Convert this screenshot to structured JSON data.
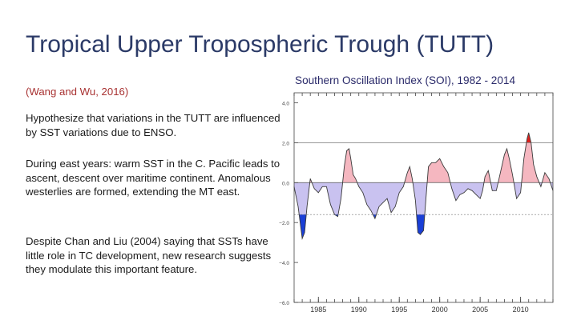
{
  "slide": {
    "title": "Tropical Upper Tropospheric Trough (TUTT)",
    "citation": "(Wang and Wu, 2016)",
    "paragraphs": [
      "Hypothesize that variations in the TUTT are influenced by SST variations due to ENSO.",
      "During east years: warm SST in the C. Pacific leads to ascent, descent over maritime continent. Anomalous westerlies are formed, extending the MT east.",
      "Despite Chan and Liu (2004) saying that SSTs have little role in TC development, new research suggests they modulate this important feature."
    ]
  },
  "colors": {
    "title": "#2b3a67",
    "citation": "#a83232",
    "positive_fill": "#f5b7c0",
    "strong_positive_fill": "#e0201c",
    "negative_fill": "#c9c2f0",
    "strong_negative_fill": "#1a3fd6",
    "curve": "#3a3a3a"
  },
  "chart_data": {
    "type": "area",
    "title": "Southern Oscillation Index (SOI), 1982 - 2014",
    "xlim": [
      1982,
      2014
    ],
    "ylim": [
      -6,
      4.5
    ],
    "x_ticks": [
      1985,
      1990,
      1995,
      2000,
      2005,
      2010
    ],
    "y_ticks": [
      4.0,
      2.0,
      0.0,
      -2.0,
      -4.0,
      -6.0
    ],
    "y_tick_labels": [
      "4.0",
      "2.0",
      "0.0",
      "−2.0",
      "−4.0",
      "−6.0"
    ],
    "reference_lines": [
      2.0,
      0.0,
      -1.6
    ],
    "series": [
      {
        "x": [
          1982.0,
          1982.5,
          1983.0,
          1983.3,
          1983.6,
          1984.0,
          1984.5,
          1985.0,
          1985.5,
          1986.0,
          1986.5,
          1987.0,
          1987.4,
          1987.8,
          1988.2,
          1988.5,
          1988.8,
          1989.0,
          1989.3,
          1989.6,
          1990.0,
          1990.5,
          1991.0,
          1991.5,
          1992.0,
          1992.5,
          1993.0,
          1993.5,
          1994.0,
          1994.5,
          1995.0,
          1995.5,
          1996.0,
          1996.3,
          1996.6,
          1997.0,
          1997.3,
          1997.6,
          1998.0,
          1998.3,
          1998.6,
          1999.0,
          1999.5,
          2000.0,
          2000.5,
          2001.0,
          2001.5,
          2002.0,
          2002.5,
          2003.0,
          2003.5,
          2004.0,
          2004.5,
          2005.0,
          2005.3,
          2005.6,
          2006.0,
          2006.5,
          2007.0,
          2007.5,
          2008.0,
          2008.3,
          2008.6,
          2009.0,
          2009.5,
          2010.0,
          2010.4,
          2010.8,
          2011.0,
          2011.3,
          2011.6,
          2012.0,
          2012.5,
          2013.0,
          2013.5,
          2014.0
        ],
        "y": [
          -0.2,
          -1.2,
          -2.8,
          -2.5,
          -1.2,
          0.2,
          -0.3,
          -0.5,
          -0.2,
          -0.2,
          -1.1,
          -1.6,
          -1.7,
          -0.8,
          0.8,
          1.6,
          1.7,
          1.2,
          0.4,
          0.2,
          -0.2,
          -0.5,
          -1.1,
          -1.4,
          -1.8,
          -1.2,
          -1.0,
          -0.8,
          -1.5,
          -1.2,
          -0.5,
          -0.2,
          0.5,
          0.8,
          0.2,
          -0.9,
          -2.5,
          -2.6,
          -2.4,
          -0.8,
          0.8,
          1.0,
          1.0,
          1.2,
          0.8,
          0.5,
          -0.3,
          -0.9,
          -0.6,
          -0.5,
          -0.3,
          -0.4,
          -0.6,
          -0.8,
          -0.4,
          0.3,
          0.6,
          -0.4,
          -0.4,
          0.5,
          1.4,
          1.7,
          1.2,
          0.4,
          -0.8,
          -0.5,
          1.2,
          2.2,
          2.5,
          2.0,
          0.9,
          0.3,
          -0.2,
          0.5,
          0.2,
          -0.4
        ]
      }
    ]
  }
}
